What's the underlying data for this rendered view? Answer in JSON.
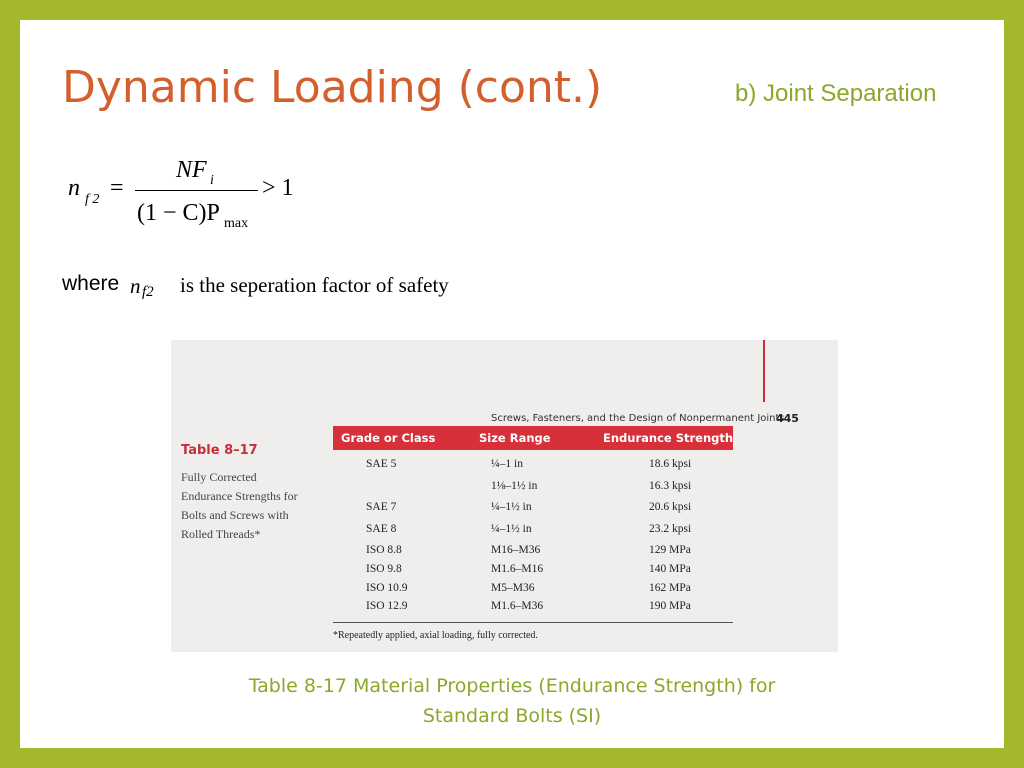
{
  "header": {
    "title": "Dynamic Loading (cont.)",
    "subtitle": "b) Joint Separation"
  },
  "equation": {
    "lhs": "n",
    "lhs_sub": "f 2",
    "equals": "=",
    "numerator": "NF",
    "numerator_sub": "i",
    "denominator": "(1 − C)P",
    "denominator_sub": "max",
    "rhs": "> 1"
  },
  "note": {
    "lead": "where",
    "symbol": "n",
    "symbol_sub": "f2",
    "text": "is the seperation factor of safety"
  },
  "figure": {
    "running_head": "Screws, Fasteners, and the Design of Nonpermanent Joints",
    "page": "445",
    "table_label": "Table 8–17",
    "table_caption": [
      "Fully Corrected",
      "Endurance Strengths for",
      "Bolts and Screws with",
      "Rolled Threads*"
    ],
    "columns": [
      "Grade or Class",
      "Size Range",
      "Endurance Strength"
    ],
    "rows": [
      [
        "SAE 5",
        "¼–1 in",
        "18.6 kpsi"
      ],
      [
        null,
        "1⅛–1½ in",
        "16.3 kpsi"
      ],
      [
        "SAE 7",
        "¼–1½ in",
        "20.6 kpsi"
      ],
      [
        "SAE 8",
        "¼–1½ in",
        "23.2 kpsi"
      ],
      [
        "ISO 8.8",
        "M16–M36",
        "129 MPa"
      ],
      [
        "ISO 9.8",
        "M1.6–M16",
        "140 MPa"
      ],
      [
        "ISO 10.9",
        "M5–M36",
        "162 MPa"
      ],
      [
        "ISO 12.9",
        "M1.6–M36",
        "190 MPa"
      ]
    ],
    "footnote": "*Repeatedly applied, axial loading, fully corrected."
  },
  "caption": [
    "Table 8-17 Material Properties (Endurance Strength) for",
    "Standard Bolts (SI)"
  ]
}
